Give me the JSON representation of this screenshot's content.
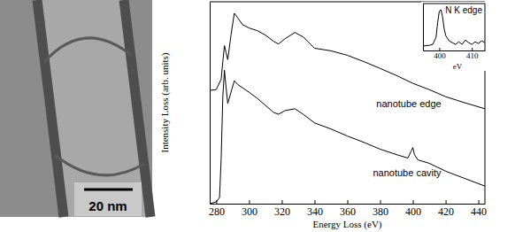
{
  "micrograph": {
    "scale_bar_label": "20 nm"
  },
  "chart_data": [
    {
      "type": "line",
      "xlabel": "Energy Loss (eV)",
      "ylabel": "Intensity Loss (arb. units)",
      "xlim": [
        276,
        444
      ],
      "xticks": [
        280,
        300,
        320,
        340,
        360,
        380,
        400,
        420,
        440
      ],
      "ylim": [
        0,
        100
      ],
      "tick_labels": "x",
      "series": [
        {
          "name": "nanotube edge",
          "color": "#000000",
          "x": [
            276,
            280,
            283,
            284,
            285,
            286,
            287,
            289,
            291,
            293,
            296,
            300,
            305,
            310,
            315,
            318,
            322,
            328,
            333,
            340,
            350,
            360,
            370,
            380,
            390,
            400,
            410,
            420,
            430,
            444
          ],
          "values": [
            56.1,
            56.5,
            61.7,
            70.4,
            78.3,
            74.8,
            71.3,
            83.5,
            94.3,
            92.2,
            88.7,
            87.0,
            85.7,
            83.5,
            80.4,
            79.1,
            81.7,
            84.8,
            82.6,
            77.0,
            75.7,
            73.5,
            70.4,
            67.0,
            63.5,
            59.6,
            56.5,
            53.0,
            50.4,
            47.0
          ]
        },
        {
          "name": "nanotube cavity",
          "color": "#000000",
          "x": [
            276,
            280,
            282,
            283,
            284,
            285,
            286,
            287,
            289,
            291,
            293,
            296,
            300,
            305,
            310,
            315,
            318,
            322,
            328,
            333,
            340,
            350,
            360,
            370,
            380,
            390,
            397,
            399,
            400,
            401,
            403,
            410,
            420,
            430,
            444
          ],
          "values": [
            0,
            0.9,
            3.0,
            22.6,
            53.0,
            66.1,
            57.4,
            49.6,
            55.2,
            60.9,
            59.1,
            57.4,
            55.2,
            52.2,
            48.7,
            45.2,
            44.3,
            46.1,
            47.0,
            44.3,
            40.0,
            37.0,
            33.5,
            30.4,
            27.0,
            24.3,
            22.6,
            26.1,
            27.8,
            24.3,
            21.7,
            20.0,
            16.1,
            13.0,
            8.7
          ]
        }
      ]
    },
    {
      "type": "line",
      "title": "N K edge",
      "xlabel": "eV",
      "xlim": [
        395,
        414
      ],
      "xticks": [
        400,
        410
      ],
      "ylim": [
        0,
        100
      ],
      "tick_labels": "x",
      "series": [
        {
          "color": "#000000",
          "x": [
            395,
            397,
            398,
            399,
            399.5,
            400,
            400.5,
            401,
            401.5,
            402,
            403,
            404,
            405,
            406,
            407,
            408,
            409,
            410,
            411,
            412,
            413,
            414
          ],
          "values": [
            9.3,
            11.1,
            13.0,
            27.8,
            59.3,
            83.3,
            87.0,
            72.2,
            46.3,
            31.5,
            20.4,
            16.7,
            13.0,
            18.5,
            13.0,
            22.2,
            16.7,
            13.0,
            18.5,
            14.8,
            20.4,
            16.7
          ]
        }
      ]
    }
  ]
}
